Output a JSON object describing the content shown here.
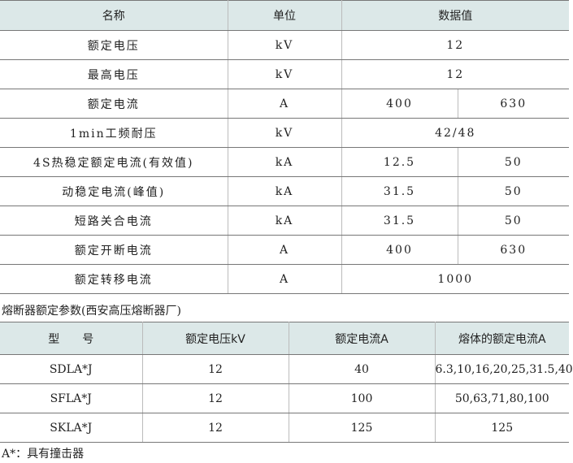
{
  "table1": {
    "headers": [
      "名称",
      "单位",
      "数据值"
    ],
    "rows": [
      {
        "name": "额定电压",
        "unit": "kV",
        "values": [
          "12"
        ]
      },
      {
        "name": "最高电压",
        "unit": "kV",
        "values": [
          "12"
        ]
      },
      {
        "name": "额定电流",
        "unit": "A",
        "values": [
          "400",
          "630"
        ]
      },
      {
        "name": "1min工频耐压",
        "unit": "kV",
        "values": [
          "42/48"
        ]
      },
      {
        "name": "4S热稳定额定电流(有效值)",
        "unit": "kA",
        "values": [
          "12.5",
          "50"
        ]
      },
      {
        "name": "动稳定电流(峰值)",
        "unit": "kA",
        "values": [
          "31.5",
          "50"
        ]
      },
      {
        "name": "短路关合电流",
        "unit": "kA",
        "values": [
          "31.5",
          "50"
        ]
      },
      {
        "name": "额定开断电流",
        "unit": "A",
        "values": [
          "400",
          "630"
        ]
      },
      {
        "name": "额定转移电流",
        "unit": "A",
        "values": [
          "1000"
        ]
      }
    ]
  },
  "caption2": "熔断器额定参数(西安高压熔断器厂)",
  "table2": {
    "headers": [
      "型　　号",
      "额定电压kV",
      "额定电流A",
      "熔体的额定电流A"
    ],
    "rows": [
      [
        "SDLA*J",
        "12",
        "40",
        "6.3,10,16,20,25,31.5,40"
      ],
      [
        "SFLA*J",
        "12",
        "100",
        "50,63,71,80,100"
      ],
      [
        "SKLA*J",
        "12",
        "125",
        "125"
      ]
    ]
  },
  "footnote": "A*：具有撞击器"
}
